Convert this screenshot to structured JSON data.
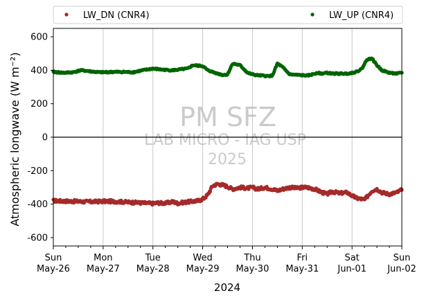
{
  "chart_data": {
    "type": "scatter",
    "xlabel": "2024",
    "ylabel": "Atmospheric longwave (W m⁻²)",
    "ylim": [
      -650,
      650
    ],
    "xlim": [
      "2024-05-26",
      "2024-06-02"
    ],
    "yticks": [
      600,
      400,
      200,
      0,
      -200,
      -400,
      -600
    ],
    "xticks": [
      {
        "day": "Sun",
        "date": "May-26"
      },
      {
        "day": "Mon",
        "date": "May-27"
      },
      {
        "day": "Tue",
        "date": "May-28"
      },
      {
        "day": "Wed",
        "date": "May-29"
      },
      {
        "day": "Thu",
        "date": "May-30"
      },
      {
        "day": "Fri",
        "date": "May-31"
      },
      {
        "day": "Sat",
        "date": "Jun-01"
      },
      {
        "day": "Sun",
        "date": "Jun-02"
      }
    ],
    "grid": "vertical",
    "zero_line": true,
    "legend_placement": "top, outside plot",
    "watermark": [
      "PM SFZ",
      "LAB MICRO - IAG USP",
      "2025"
    ],
    "series": [
      {
        "name": "LW_DN (CNR4)",
        "color": "#a52a2a",
        "x_days": [
          0,
          0.25,
          0.5,
          0.75,
          1,
          1.25,
          1.5,
          1.75,
          2,
          2.1,
          2.25,
          2.4,
          2.5,
          2.6,
          2.75,
          2.9,
          3,
          3.1,
          3.2,
          3.3,
          3.4,
          3.5,
          3.6,
          3.75,
          3.9,
          4,
          4.1,
          4.25,
          4.4,
          4.5,
          4.6,
          4.75,
          4.9,
          5,
          5.1,
          5.25,
          5.4,
          5.5,
          5.6,
          5.75,
          5.9,
          6,
          6.1,
          6.2,
          6.25,
          6.4,
          6.5,
          6.6,
          6.75,
          6.9,
          7
        ],
        "values": [
          -380,
          -382,
          -384,
          -386,
          -383,
          -384,
          -388,
          -392,
          -396,
          -392,
          -395,
          -385,
          -395,
          -390,
          -385,
          -380,
          -370,
          -345,
          -290,
          -280,
          -285,
          -295,
          -310,
          -300,
          -305,
          -300,
          -310,
          -300,
          -310,
          -320,
          -310,
          -300,
          -305,
          -300,
          -300,
          -310,
          -330,
          -340,
          -325,
          -335,
          -330,
          -350,
          -365,
          -370,
          -375,
          -320,
          -310,
          -330,
          -340,
          -330,
          -315
        ]
      },
      {
        "name": "LW_UP (CNR4)",
        "color": "#006400",
        "x_days": [
          0,
          0.2,
          0.4,
          0.55,
          0.7,
          0.9,
          1,
          1.2,
          1.4,
          1.6,
          1.8,
          2,
          2.2,
          2.4,
          2.55,
          2.7,
          2.8,
          3,
          3.1,
          3.2,
          3.3,
          3.4,
          3.5,
          3.6,
          3.75,
          3.9,
          4,
          4.1,
          4.2,
          4.3,
          4.4,
          4.5,
          4.6,
          4.75,
          4.9,
          5,
          5.1,
          5.2,
          5.3,
          5.4,
          5.5,
          5.6,
          5.75,
          5.9,
          6,
          6.1,
          6.2,
          6.3,
          6.4,
          6.5,
          6.6,
          6.75,
          6.9,
          7
        ],
        "values": [
          390,
          385,
          388,
          400,
          395,
          388,
          388,
          390,
          390,
          388,
          400,
          410,
          403,
          400,
          405,
          410,
          430,
          425,
          400,
          390,
          380,
          372,
          375,
          440,
          430,
          385,
          375,
          370,
          368,
          365,
          368,
          440,
          420,
          375,
          372,
          370,
          368,
          375,
          385,
          380,
          385,
          380,
          380,
          380,
          385,
          392,
          410,
          465,
          470,
          430,
          400,
          385,
          380,
          385
        ]
      }
    ]
  }
}
